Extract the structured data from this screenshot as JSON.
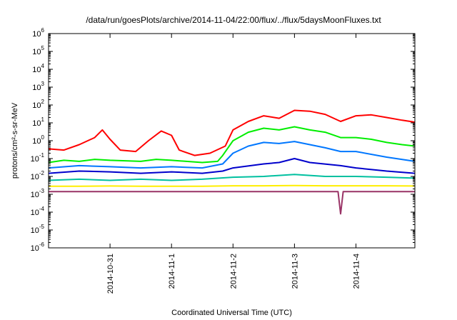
{
  "chart_data": {
    "type": "line",
    "title": "/data/run/goesPlots/archive/2014-11-04/22:00/flux/../flux/5daysMoonFluxes.txt",
    "xlabel": "Coordinated Universal Time (UTC)",
    "ylabel": "protons/cm²-s-sr-MeV",
    "yscale": "log",
    "ylim": [
      1e-06,
      1000000.0
    ],
    "y_ticks": [
      {
        "base": "10",
        "exp": "-6",
        "v": -6
      },
      {
        "base": "10",
        "exp": "-5",
        "v": -5
      },
      {
        "base": "10",
        "exp": "-4",
        "v": -4
      },
      {
        "base": "10",
        "exp": "-3",
        "v": -3
      },
      {
        "base": "10",
        "exp": "-2",
        "v": -2
      },
      {
        "base": "10",
        "exp": "-1",
        "v": -1
      },
      {
        "base": "10",
        "exp": "0",
        "v": 0
      },
      {
        "base": "10",
        "exp": "1",
        "v": 1
      },
      {
        "base": "10",
        "exp": "2",
        "v": 2
      },
      {
        "base": "10",
        "exp": "3",
        "v": 3
      },
      {
        "base": "10",
        "exp": "4",
        "v": 4
      },
      {
        "base": "10",
        "exp": "5",
        "v": 5
      },
      {
        "base": "10",
        "exp": "6",
        "v": 6
      }
    ],
    "xlim": [
      "2014-10-30T00:00",
      "2014-11-04T23:00"
    ],
    "x_ticks": [
      {
        "label": "2014-10-31",
        "x": "2014-10-31T00:00"
      },
      {
        "label": "2014-11-1",
        "x": "2014-11-01T00:00"
      },
      {
        "label": "2014-11-2",
        "x": "2014-11-02T00:00"
      },
      {
        "label": "2014-11-3",
        "x": "2014-11-03T00:00"
      },
      {
        "label": "2014-11-4",
        "x": "2014-11-04T00:00"
      }
    ],
    "grid": false,
    "legend": "none",
    "series": [
      {
        "color": "#ff0000",
        "points": [
          [
            "2014-10-30T00:00",
            0.35
          ],
          [
            "2014-10-30T06:00",
            0.3
          ],
          [
            "2014-10-30T12:00",
            0.6
          ],
          [
            "2014-10-30T18:00",
            1.5
          ],
          [
            "2014-10-30T21:00",
            4.0
          ],
          [
            "2014-10-31T00:00",
            1.2
          ],
          [
            "2014-10-31T04:00",
            0.3
          ],
          [
            "2014-10-31T10:00",
            0.25
          ],
          [
            "2014-10-31T15:00",
            1.0
          ],
          [
            "2014-10-31T20:00",
            3.5
          ],
          [
            "2014-11-01T00:00",
            2.0
          ],
          [
            "2014-11-01T03:00",
            0.3
          ],
          [
            "2014-11-01T09:00",
            0.15
          ],
          [
            "2014-11-01T15:00",
            0.2
          ],
          [
            "2014-11-01T21:00",
            0.5
          ],
          [
            "2014-11-02T00:00",
            4
          ],
          [
            "2014-11-02T06:00",
            12
          ],
          [
            "2014-11-02T12:00",
            25
          ],
          [
            "2014-11-02T18:00",
            18
          ],
          [
            "2014-11-03T00:00",
            50
          ],
          [
            "2014-11-03T06:00",
            45
          ],
          [
            "2014-11-03T12:00",
            30
          ],
          [
            "2014-11-03T18:00",
            12
          ],
          [
            "2014-11-04T00:00",
            25
          ],
          [
            "2014-11-04T06:00",
            28
          ],
          [
            "2014-11-04T12:00",
            20
          ],
          [
            "2014-11-04T18:00",
            14
          ],
          [
            "2014-11-04T23:00",
            11
          ]
        ]
      },
      {
        "color": "#00ee00",
        "points": [
          [
            "2014-10-30T00:00",
            0.06
          ],
          [
            "2014-10-30T06:00",
            0.08
          ],
          [
            "2014-10-30T12:00",
            0.07
          ],
          [
            "2014-10-30T18:00",
            0.09
          ],
          [
            "2014-10-31T00:00",
            0.08
          ],
          [
            "2014-10-31T12:00",
            0.07
          ],
          [
            "2014-10-31T18:00",
            0.09
          ],
          [
            "2014-11-01T00:00",
            0.08
          ],
          [
            "2014-11-01T12:00",
            0.06
          ],
          [
            "2014-11-01T18:00",
            0.07
          ],
          [
            "2014-11-01T20:00",
            0.15
          ],
          [
            "2014-11-02T00:00",
            1.0
          ],
          [
            "2014-11-02T06:00",
            3.0
          ],
          [
            "2014-11-02T12:00",
            5.0
          ],
          [
            "2014-11-02T18:00",
            4.0
          ],
          [
            "2014-11-03T00:00",
            6.0
          ],
          [
            "2014-11-03T06:00",
            4.0
          ],
          [
            "2014-11-03T12:00",
            3.0
          ],
          [
            "2014-11-03T18:00",
            1.5
          ],
          [
            "2014-11-04T00:00",
            1.5
          ],
          [
            "2014-11-04T06:00",
            1.2
          ],
          [
            "2014-11-04T12:00",
            0.8
          ],
          [
            "2014-11-04T18:00",
            0.6
          ],
          [
            "2014-11-04T23:00",
            0.5
          ]
        ]
      },
      {
        "color": "#0077ff",
        "points": [
          [
            "2014-10-30T00:00",
            0.03
          ],
          [
            "2014-10-30T12:00",
            0.04
          ],
          [
            "2014-10-31T00:00",
            0.035
          ],
          [
            "2014-10-31T12:00",
            0.03
          ],
          [
            "2014-11-01T00:00",
            0.035
          ],
          [
            "2014-11-01T12:00",
            0.03
          ],
          [
            "2014-11-01T20:00",
            0.05
          ],
          [
            "2014-11-02T00:00",
            0.2
          ],
          [
            "2014-11-02T06:00",
            0.5
          ],
          [
            "2014-11-02T12:00",
            0.8
          ],
          [
            "2014-11-02T18:00",
            0.7
          ],
          [
            "2014-11-03T00:00",
            0.9
          ],
          [
            "2014-11-03T06:00",
            0.6
          ],
          [
            "2014-11-03T12:00",
            0.4
          ],
          [
            "2014-11-03T18:00",
            0.25
          ],
          [
            "2014-11-04T00:00",
            0.25
          ],
          [
            "2014-11-04T12:00",
            0.12
          ],
          [
            "2014-11-04T23:00",
            0.07
          ]
        ]
      },
      {
        "color": "#0000cc",
        "points": [
          [
            "2014-10-30T00:00",
            0.015
          ],
          [
            "2014-10-30T12:00",
            0.02
          ],
          [
            "2014-10-31T00:00",
            0.018
          ],
          [
            "2014-10-31T12:00",
            0.015
          ],
          [
            "2014-11-01T00:00",
            0.018
          ],
          [
            "2014-11-01T12:00",
            0.015
          ],
          [
            "2014-11-01T20:00",
            0.02
          ],
          [
            "2014-11-02T00:00",
            0.03
          ],
          [
            "2014-11-02T12:00",
            0.05
          ],
          [
            "2014-11-02T18:00",
            0.06
          ],
          [
            "2014-11-03T00:00",
            0.1
          ],
          [
            "2014-11-03T06:00",
            0.06
          ],
          [
            "2014-11-03T18:00",
            0.04
          ],
          [
            "2014-11-04T00:00",
            0.03
          ],
          [
            "2014-11-04T12:00",
            0.02
          ],
          [
            "2014-11-04T23:00",
            0.015
          ]
        ]
      },
      {
        "color": "#00c0a0",
        "points": [
          [
            "2014-10-30T00:00",
            0.006
          ],
          [
            "2014-10-30T12:00",
            0.007
          ],
          [
            "2014-10-31T00:00",
            0.006
          ],
          [
            "2014-10-31T12:00",
            0.007
          ],
          [
            "2014-11-01T00:00",
            0.006
          ],
          [
            "2014-11-01T12:00",
            0.007
          ],
          [
            "2014-11-02T00:00",
            0.009
          ],
          [
            "2014-11-02T12:00",
            0.01
          ],
          [
            "2014-11-03T00:00",
            0.013
          ],
          [
            "2014-11-03T12:00",
            0.01
          ],
          [
            "2014-11-04T00:00",
            0.01
          ],
          [
            "2014-11-04T12:00",
            0.009
          ],
          [
            "2014-11-04T23:00",
            0.008
          ]
        ]
      },
      {
        "color": "#ffee00",
        "points": [
          [
            "2014-10-30T00:00",
            0.0028
          ],
          [
            "2014-10-30T12:00",
            0.0028
          ],
          [
            "2014-10-31T00:00",
            0.0029
          ],
          [
            "2014-10-31T12:00",
            0.0028
          ],
          [
            "2014-11-01T00:00",
            0.0028
          ],
          [
            "2014-11-01T12:00",
            0.0028
          ],
          [
            "2014-11-02T00:00",
            0.003
          ],
          [
            "2014-11-02T12:00",
            0.003
          ],
          [
            "2014-11-03T00:00",
            0.0031
          ],
          [
            "2014-11-03T12:00",
            0.003
          ],
          [
            "2014-11-04T00:00",
            0.003
          ],
          [
            "2014-11-04T12:00",
            0.003
          ],
          [
            "2014-11-04T23:00",
            0.0029
          ]
        ]
      },
      {
        "color": "#993366",
        "points": [
          [
            "2014-10-30T00:00",
            0.0014
          ],
          [
            "2014-10-30T12:00",
            0.0014
          ],
          [
            "2014-10-31T00:00",
            0.0014
          ],
          [
            "2014-10-31T12:00",
            0.0014
          ],
          [
            "2014-11-01T00:00",
            0.0014
          ],
          [
            "2014-11-01T12:00",
            0.0014
          ],
          [
            "2014-11-02T00:00",
            0.0014
          ],
          [
            "2014-11-02T12:00",
            0.0014
          ],
          [
            "2014-11-03T00:00",
            0.0014
          ],
          [
            "2014-11-03T12:00",
            0.0014
          ],
          [
            "2014-11-03T17:00",
            0.0014
          ],
          [
            "2014-11-03T18:00",
            8e-05
          ],
          [
            "2014-11-03T19:00",
            0.0014
          ],
          [
            "2014-11-04T00:00",
            0.0014
          ],
          [
            "2014-11-04T12:00",
            0.0014
          ],
          [
            "2014-11-04T23:00",
            0.0014
          ]
        ]
      }
    ]
  }
}
